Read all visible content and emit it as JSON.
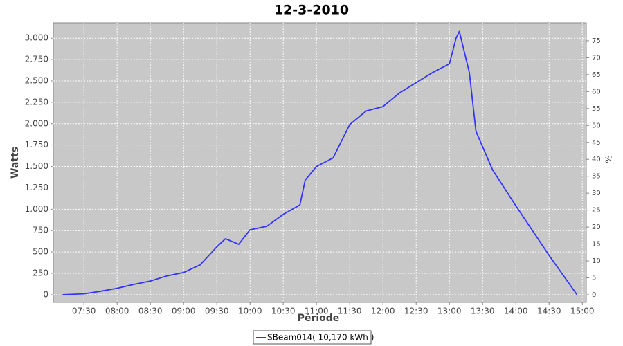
{
  "chart_data": {
    "type": "line",
    "title": "12-3-2010",
    "y_label": "Watts",
    "y2_label": "%",
    "x_label": "Période",
    "x": [
      7.18,
      7.5,
      7.75,
      8.0,
      8.25,
      8.5,
      8.75,
      9.0,
      9.25,
      9.5,
      9.63,
      9.83,
      10.0,
      10.25,
      10.5,
      10.75,
      10.83,
      11.0,
      11.1,
      11.25,
      11.5,
      11.75,
      12.0,
      12.25,
      12.5,
      12.75,
      13.0,
      13.1,
      13.15,
      13.3,
      13.4,
      13.5,
      13.65,
      14.0,
      14.5,
      14.92
    ],
    "series": [
      {
        "name": "SBeam014( 10,170 kWh )",
        "color": "#3333ff",
        "values": [
          0,
          10,
          40,
          75,
          120,
          160,
          220,
          260,
          350,
          560,
          655,
          590,
          760,
          800,
          940,
          1050,
          1340,
          1500,
          1540,
          1600,
          1990,
          2150,
          2200,
          2360,
          2480,
          2600,
          2700,
          3000,
          3080,
          2600,
          1910,
          1730,
          1460,
          1040,
          460,
          0
        ]
      }
    ],
    "xlim": [
      7.04,
      15.06
    ],
    "xticks": [
      {
        "value": 7.5,
        "label": "07:30"
      },
      {
        "value": 8,
        "label": "08:00"
      },
      {
        "value": 8.5,
        "label": "08:30"
      },
      {
        "value": 9,
        "label": "09:00"
      },
      {
        "value": 9.5,
        "label": "09:30"
      },
      {
        "value": 10,
        "label": "10:00"
      },
      {
        "value": 10.5,
        "label": "10:30"
      },
      {
        "value": 11,
        "label": "11:00"
      },
      {
        "value": 11.5,
        "label": "11:30"
      },
      {
        "value": 12,
        "label": "12:00"
      },
      {
        "value": 12.5,
        "label": "12:30"
      },
      {
        "value": 13,
        "label": "13:00"
      },
      {
        "value": 13.5,
        "label": "13:30"
      },
      {
        "value": 14,
        "label": "14:00"
      },
      {
        "value": 14.5,
        "label": "14:30"
      },
      {
        "value": 15,
        "label": "15:00"
      }
    ],
    "ylim": [
      -90,
      3180
    ],
    "yticks": [
      0,
      250,
      500,
      750,
      {
        "value": 1000,
        "label": "1.000"
      },
      {
        "value": 1250,
        "label": "1.250"
      },
      {
        "value": 1500,
        "label": "1.500"
      },
      {
        "value": 1750,
        "label": "1.750"
      },
      {
        "value": 2000,
        "label": "2.000"
      },
      {
        "value": 2250,
        "label": "2.250"
      },
      {
        "value": 2500,
        "label": "2.500"
      },
      {
        "value": 2750,
        "label": "2.750"
      },
      {
        "value": 3000,
        "label": "3.000"
      }
    ],
    "y2lim": [
      -2.25,
      80.3
    ],
    "y2ticks": [
      0,
      5,
      10,
      15,
      20,
      25,
      30,
      35,
      40,
      45,
      50,
      55,
      60,
      65,
      70,
      75
    ],
    "grid": true
  }
}
